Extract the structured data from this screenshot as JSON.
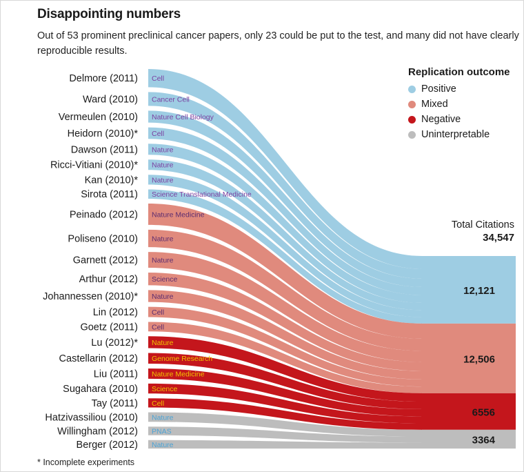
{
  "title": "Disappointing numbers",
  "subtitle": "Out of 53 prominent preclinical cancer papers, only 23 could be put to the test, and many did not have clearly reproducible results.",
  "footnote": "* Incomplete experiments",
  "legend": {
    "title": "Replication outcome",
    "items": [
      {
        "label": "Positive",
        "color": "#9ecde3"
      },
      {
        "label": "Mixed",
        "color": "#e08a7d"
      },
      {
        "label": "Negative",
        "color": "#c4161c"
      },
      {
        "label": "Uninterpretable",
        "color": "#bdbdbd"
      }
    ]
  },
  "total": {
    "label": "Total Citations",
    "value": "34,547"
  },
  "chart_data": {
    "type": "sankey",
    "title": "Disappointing numbers",
    "total_citations": 34547,
    "outcomes": [
      {
        "name": "Positive",
        "label": "12,121",
        "value": 12121,
        "color": "#9ecde3"
      },
      {
        "name": "Mixed",
        "label": "12,506",
        "value": 12506,
        "color": "#e08a7d"
      },
      {
        "name": "Negative",
        "label": "6556",
        "value": 6556,
        "color": "#c4161c"
      },
      {
        "name": "Uninterpretable",
        "label": "3364",
        "value": 3364,
        "color": "#bdbdbd"
      }
    ],
    "papers": [
      {
        "label": "Delmore (2011)",
        "journal": "Cell",
        "outcome": "Positive",
        "citations": 2300
      },
      {
        "label": "Ward (2010)",
        "journal": "Cancer Cell",
        "outcome": "Positive",
        "citations": 1750
      },
      {
        "label": "Vermeulen (2010)",
        "journal": "Nature Cell Biology",
        "outcome": "Positive",
        "citations": 1500
      },
      {
        "label": "Heidorn (2010)*",
        "journal": "Cell",
        "outcome": "Positive",
        "citations": 1450
      },
      {
        "label": "Dawson (2011)",
        "journal": "Nature",
        "outcome": "Positive",
        "citations": 1400
      },
      {
        "label": "Ricci-Vitiani (2010)*",
        "journal": "Nature",
        "outcome": "Positive",
        "citations": 1300
      },
      {
        "label": "Kan (2010)*",
        "journal": "Nature",
        "outcome": "Positive",
        "citations": 1250
      },
      {
        "label": "Sirota (2011)",
        "journal": "Science Translational Medicine",
        "outcome": "Positive",
        "citations": 1171
      },
      {
        "label": "Peinado (2012)",
        "journal": "Nature Medicine",
        "outcome": "Mixed",
        "citations": 2700
      },
      {
        "label": "Poliseno (2010)",
        "journal": "Nature",
        "outcome": "Mixed",
        "citations": 2200
      },
      {
        "label": "Garnett (2012)",
        "journal": "Nature",
        "outcome": "Mixed",
        "citations": 2000
      },
      {
        "label": "Arthur (2012)",
        "journal": "Science",
        "outcome": "Mixed",
        "citations": 1600
      },
      {
        "label": "Johannessen (2010)*",
        "journal": "Nature",
        "outcome": "Mixed",
        "citations": 1500
      },
      {
        "label": "Lin (2012)",
        "journal": "Cell",
        "outcome": "Mixed",
        "citations": 1300
      },
      {
        "label": "Goetz (2011)",
        "journal": "Cell",
        "outcome": "Mixed",
        "citations": 1206
      },
      {
        "label": "Lu (2012)*",
        "journal": "Nature",
        "outcome": "Negative",
        "citations": 1500
      },
      {
        "label": "Castellarin (2012)",
        "journal": "Genome Research",
        "outcome": "Negative",
        "citations": 1350
      },
      {
        "label": "Liu (2011)",
        "journal": "Nature Medicine",
        "outcome": "Negative",
        "citations": 1300
      },
      {
        "label": "Sugahara (2010)",
        "journal": "Science",
        "outcome": "Negative",
        "citations": 1250
      },
      {
        "label": "Tay (2011)",
        "journal": "Cell",
        "outcome": "Negative",
        "citations": 1156
      },
      {
        "label": "Hatzivassiliou (2010)",
        "journal": "Nature",
        "outcome": "Uninterpretable",
        "citations": 1200
      },
      {
        "label": "Willingham (2012)",
        "journal": "PNAS",
        "outcome": "Uninterpretable",
        "citations": 1100
      },
      {
        "label": "Berger (2012)",
        "journal": "Nature",
        "outcome": "Uninterpretable",
        "citations": 1064
      }
    ]
  }
}
